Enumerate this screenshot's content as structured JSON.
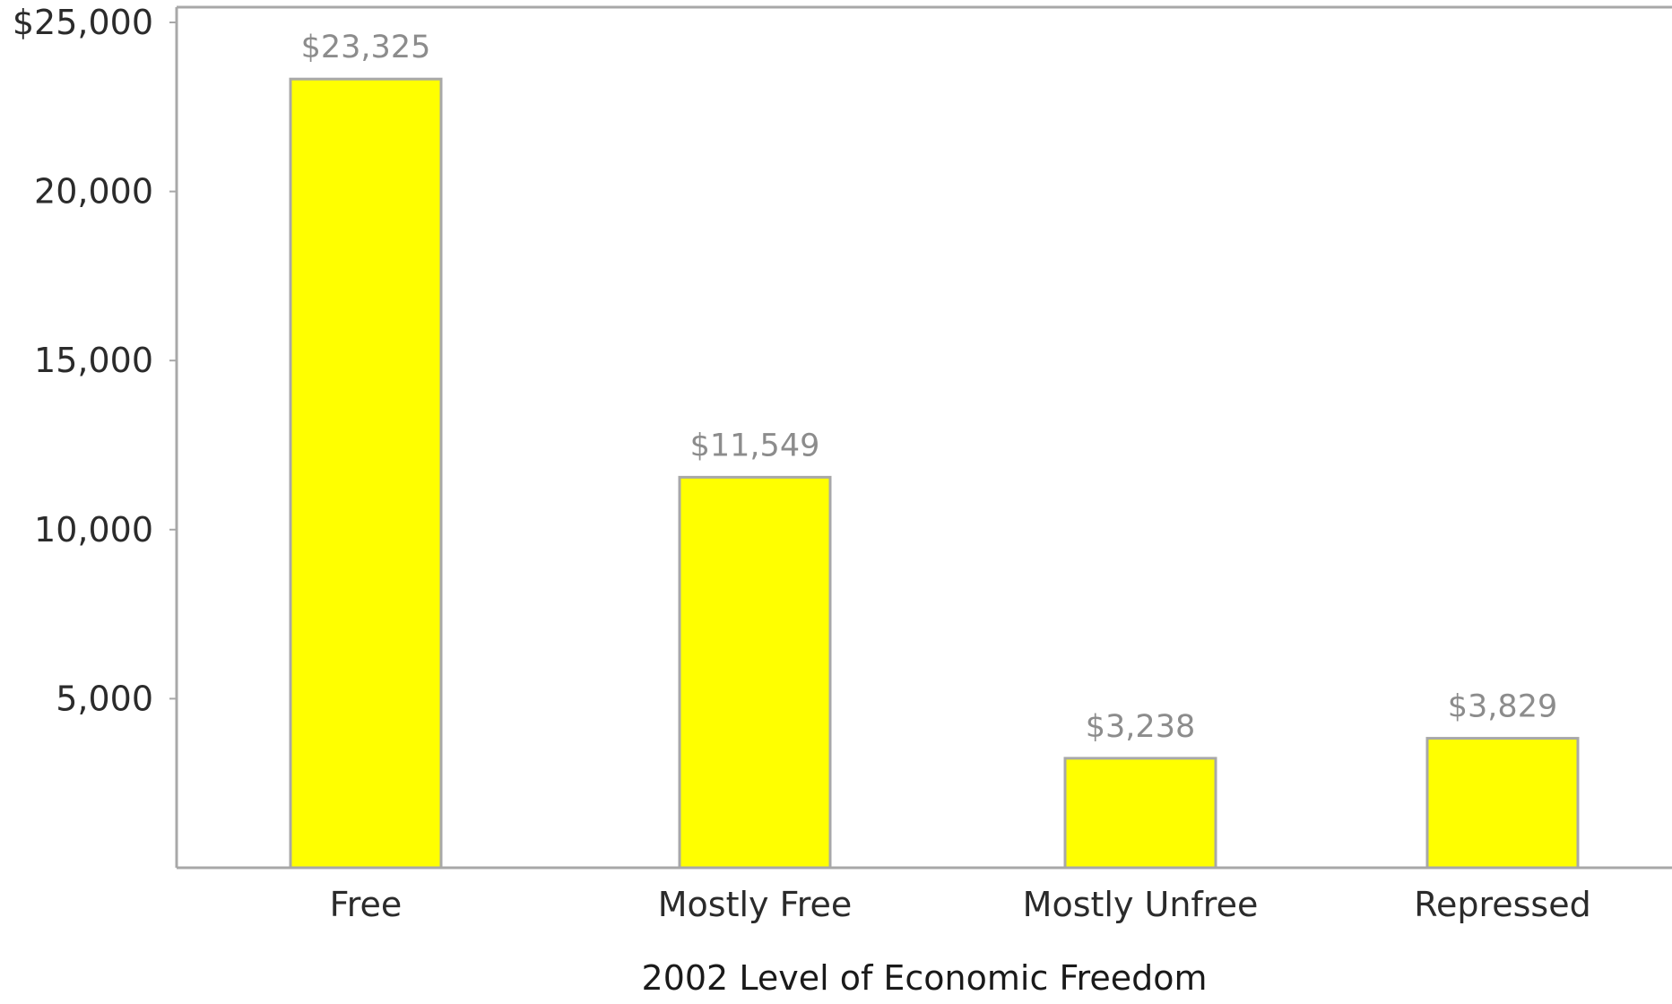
{
  "chart_data": {
    "type": "bar",
    "categories": [
      "Free",
      "Mostly Free",
      "Mostly Unfree",
      "Repressed"
    ],
    "values": [
      23325,
      11549,
      3238,
      3829
    ],
    "value_labels": [
      "$23,325",
      "$11,549",
      "$3,238",
      "$3,829"
    ],
    "xlabel": "2002 Level of Economic Freedom",
    "ylabel": "",
    "ylim": [
      0,
      25000
    ],
    "y_ticks": [
      5000,
      10000,
      15000,
      20000,
      25000
    ],
    "y_tick_labels": [
      "5,000",
      "10,000",
      "15,000",
      "20,000",
      "$25,000"
    ],
    "grid": false,
    "legend": "none",
    "colors": {
      "bar_fill": "#ffff00",
      "bar_stroke": "#a8a8a8",
      "axis": "#a8a8a8",
      "value_label": "#8c8c8c",
      "text": "#2b2b2b"
    }
  }
}
